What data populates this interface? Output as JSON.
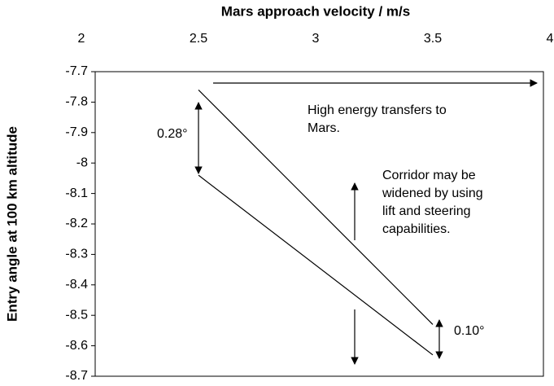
{
  "chart_data": {
    "type": "line",
    "title": "Mars approach velocity / m/s",
    "y_label": "Entry angle at 100 km altitude",
    "xlim": [
      2,
      4
    ],
    "xticks": [
      2,
      2.5,
      3,
      3.5,
      4
    ],
    "ylim": [
      -7.7,
      -8.7
    ],
    "yticks": [
      -7.7,
      -7.8,
      -7.9,
      -8,
      -8.1,
      -8.2,
      -8.3,
      -8.4,
      -8.5,
      -8.6,
      -8.7
    ],
    "series": [
      {
        "color": "#000000",
        "x": [
          2.5,
          3.5
        ],
        "values": [
          -7.76,
          -8.53
        ]
      },
      {
        "color": "#000000",
        "x": [
          2.5,
          3.5
        ],
        "values": [
          -8.04,
          -8.63
        ]
      }
    ],
    "annotations": [
      [
        "0.28°"
      ],
      [
        "High energy transfers to",
        "Mars."
      ],
      [
        "Corridor may be",
        "widened by using",
        "lift and steering",
        "capabilities."
      ],
      [
        "0.10°"
      ]
    ]
  }
}
